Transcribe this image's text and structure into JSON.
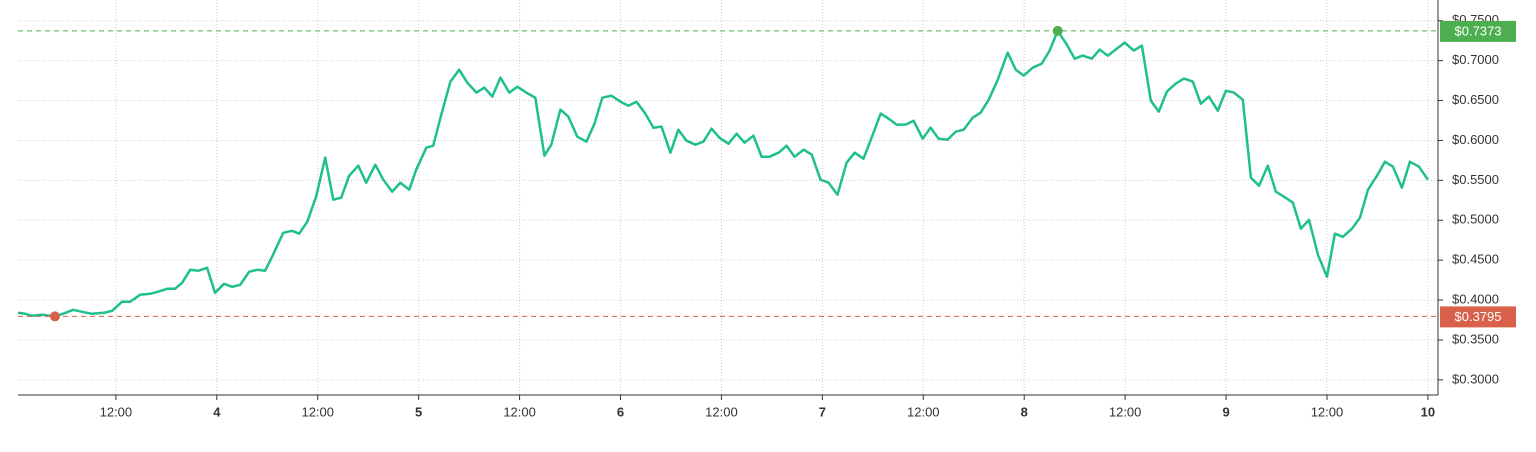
{
  "chart_data": {
    "type": "line",
    "xlim": [
      3.015,
      10.05
    ],
    "xticks": [
      {
        "value": 3.5,
        "label": "12:00"
      },
      4,
      {
        "value": 4.5,
        "label": "12:00"
      },
      5,
      {
        "value": 5.5,
        "label": "12:00"
      },
      6,
      {
        "value": 6.5,
        "label": "12:00"
      },
      7,
      {
        "value": 7.5,
        "label": "12:00"
      },
      8,
      {
        "value": 8.5,
        "label": "12:00"
      },
      9,
      {
        "value": 9.5,
        "label": "12:00"
      },
      10
    ],
    "ylim": [
      0.281,
      0.776
    ],
    "yticks": [
      {
        "value": 0.3,
        "label": "$0.3000"
      },
      {
        "value": 0.35,
        "label": "$0.3500"
      },
      {
        "value": 0.4,
        "label": "$0.4000"
      },
      {
        "value": 0.45,
        "label": "$0.4500"
      },
      {
        "value": 0.5,
        "label": "$0.5000"
      },
      {
        "value": 0.55,
        "label": "$0.5500"
      },
      {
        "value": 0.6,
        "label": "$0.6000"
      },
      {
        "value": 0.65,
        "label": "$0.6500"
      },
      {
        "value": 0.7,
        "label": "$0.7000"
      },
      {
        "value": 0.75,
        "label": "$0.7500"
      }
    ],
    "grid": true,
    "x": [
      3.015,
      3.05,
      3.084,
      3.134,
      3.198,
      3.238,
      3.288,
      3.332,
      3.382,
      3.441,
      3.481,
      3.53,
      3.57,
      3.62,
      3.669,
      3.709,
      3.754,
      3.793,
      3.828,
      3.868,
      3.907,
      3.952,
      3.991,
      4.036,
      4.076,
      4.116,
      4.16,
      4.2,
      4.239,
      4.279,
      4.329,
      4.373,
      4.408,
      4.448,
      4.492,
      4.537,
      4.577,
      4.616,
      4.656,
      4.701,
      4.74,
      4.785,
      4.825,
      4.869,
      4.909,
      4.953,
      4.988,
      5.038,
      5.072,
      5.112,
      5.157,
      5.201,
      5.241,
      5.286,
      5.325,
      5.365,
      5.405,
      5.449,
      5.489,
      5.533,
      5.578,
      5.623,
      5.657,
      5.702,
      5.742,
      5.786,
      5.831,
      5.871,
      5.91,
      5.955,
      6.0,
      6.039,
      6.079,
      6.123,
      6.163,
      6.203,
      6.247,
      6.287,
      6.327,
      6.371,
      6.411,
      6.451,
      6.49,
      6.535,
      6.575,
      6.614,
      6.659,
      6.699,
      6.738,
      6.783,
      6.823,
      6.862,
      6.907,
      6.947,
      6.991,
      7.031,
      7.075,
      7.12,
      7.16,
      7.204,
      7.244,
      7.289,
      7.328,
      7.368,
      7.413,
      7.452,
      7.497,
      7.536,
      7.576,
      7.621,
      7.66,
      7.7,
      7.745,
      7.784,
      7.824,
      7.869,
      7.918,
      7.958,
      7.998,
      8.042,
      8.087,
      8.126,
      8.166,
      8.211,
      8.25,
      8.29,
      8.335,
      8.374,
      8.414,
      8.459,
      8.498,
      8.543,
      8.583,
      8.627,
      8.667,
      8.707,
      8.751,
      8.791,
      8.835,
      8.875,
      8.915,
      8.959,
      8.999,
      9.039,
      9.083,
      9.123,
      9.163,
      9.207,
      9.247,
      9.287,
      9.331,
      9.371,
      9.411,
      9.455,
      9.5,
      9.539,
      9.579,
      9.624,
      9.663,
      9.703,
      9.748,
      9.787,
      9.827,
      9.871,
      9.911,
      9.956,
      10.0
    ],
    "series": [
      {
        "color": "#1fbf8f",
        "values": [
          0.384,
          0.3828,
          0.3803,
          0.3815,
          0.3795,
          0.3828,
          0.3878,
          0.3853,
          0.3828,
          0.384,
          0.3865,
          0.3978,
          0.3978,
          0.4066,
          0.4078,
          0.4104,
          0.4141,
          0.4141,
          0.4216,
          0.4379,
          0.4367,
          0.4404,
          0.4091,
          0.4204,
          0.4166,
          0.4191,
          0.4354,
          0.4379,
          0.4367,
          0.4568,
          0.4843,
          0.4868,
          0.4831,
          0.4981,
          0.5295,
          0.5784,
          0.5257,
          0.5282,
          0.5558,
          0.5684,
          0.547,
          0.5696,
          0.5508,
          0.5358,
          0.547,
          0.5383,
          0.5633,
          0.5909,
          0.5934,
          0.6323,
          0.6737,
          0.6887,
          0.6724,
          0.6599,
          0.6662,
          0.6549,
          0.6787,
          0.6599,
          0.6674,
          0.6599,
          0.6536,
          0.5809,
          0.5947,
          0.6386,
          0.6298,
          0.6047,
          0.5985,
          0.621,
          0.6536,
          0.6561,
          0.6486,
          0.6436,
          0.6486,
          0.6336,
          0.616,
          0.6173,
          0.5847,
          0.6135,
          0.5997,
          0.5947,
          0.5985,
          0.6148,
          0.6035,
          0.5959,
          0.6085,
          0.5972,
          0.606,
          0.5796,
          0.5796,
          0.5847,
          0.5934,
          0.5796,
          0.5884,
          0.5822,
          0.5508,
          0.547,
          0.532,
          0.5721,
          0.5847,
          0.5771,
          0.6035,
          0.6336,
          0.6273,
          0.6198,
          0.6198,
          0.6248,
          0.6022,
          0.616,
          0.6022,
          0.601,
          0.611,
          0.6135,
          0.6285,
          0.6348,
          0.6511,
          0.6762,
          0.71,
          0.6887,
          0.6812,
          0.6912,
          0.6963,
          0.7126,
          0.7373,
          0.7201,
          0.7025,
          0.7063,
          0.7025,
          0.7138,
          0.7063,
          0.7151,
          0.7226,
          0.7126,
          0.7188,
          0.6499,
          0.6361,
          0.6612,
          0.6712,
          0.6775,
          0.6737,
          0.6461,
          0.6549,
          0.6373,
          0.6624,
          0.6599,
          0.6511,
          0.5533,
          0.5433,
          0.5684,
          0.5358,
          0.5295,
          0.522,
          0.4894,
          0.5006,
          0.4568,
          0.4292,
          0.4831,
          0.4793,
          0.4894,
          0.5031,
          0.5383,
          0.5558,
          0.5734,
          0.5671,
          0.5408,
          0.5734,
          0.5671,
          0.5508
        ]
      }
    ],
    "annotations": [
      {
        "x": 8.166,
        "value": 0.7373,
        "label": "$0.7373",
        "color": "#4cae4f"
      },
      {
        "x": 3.198,
        "value": 0.3795,
        "label": "$0.3795",
        "color": "#d9604a"
      }
    ]
  }
}
